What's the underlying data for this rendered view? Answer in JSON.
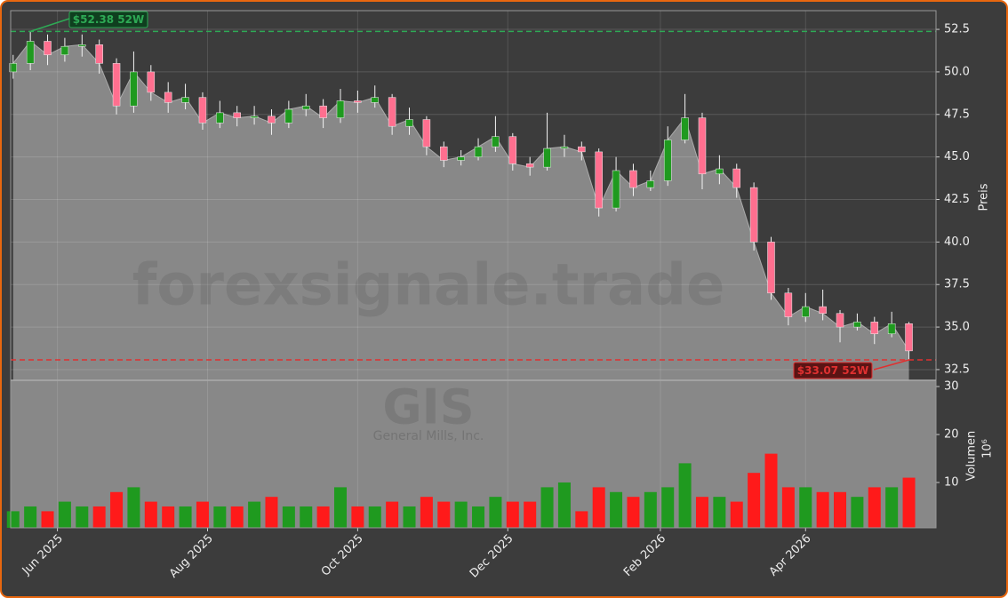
{
  "chart_data": {
    "type": "candlestick",
    "watermark": "forexsignale.trade",
    "ticker": "GIS",
    "company": "General Mills, Inc.",
    "y_label": "Preis",
    "y2_label": "Volumen",
    "y2_unit": "10⁶",
    "up_color": "#1f9a1f",
    "down_color": "#ff1a1a",
    "fill_color": "#888888",
    "x": [
      "2025-05-14",
      "2025-05-21",
      "2025-05-28",
      "2025-06-04",
      "2025-06-11",
      "2025-06-18",
      "2025-06-25",
      "2025-07-02",
      "2025-07-09",
      "2025-07-16",
      "2025-07-23",
      "2025-07-30",
      "2025-08-06",
      "2025-08-13",
      "2025-08-20",
      "2025-08-27",
      "2025-09-03",
      "2025-09-10",
      "2025-09-17",
      "2025-09-24",
      "2025-10-01",
      "2025-10-08",
      "2025-10-15",
      "2025-10-22",
      "2025-10-29",
      "2025-11-05",
      "2025-11-12",
      "2025-11-19",
      "2025-11-26",
      "2025-12-03",
      "2025-12-10",
      "2025-12-17",
      "2025-12-24",
      "2025-12-31",
      "2026-01-07",
      "2026-01-14",
      "2026-01-21",
      "2026-01-28",
      "2026-02-04",
      "2026-02-11",
      "2026-02-18",
      "2026-02-25",
      "2026-03-04",
      "2026-03-11",
      "2026-03-18",
      "2026-03-25",
      "2026-04-01",
      "2026-04-08",
      "2026-04-15",
      "2026-04-22",
      "2026-04-29",
      "2026-05-06",
      "2026-05-13"
    ],
    "open": [
      50.0,
      50.5,
      51.8,
      51.0,
      51.5,
      51.6,
      50.5,
      48.0,
      50.0,
      48.8,
      48.2,
      48.5,
      47.0,
      47.6,
      47.3,
      47.4,
      47.0,
      47.8,
      48.0,
      47.3,
      48.3,
      48.2,
      48.5,
      46.8,
      47.2,
      45.6,
      44.8,
      45.0,
      45.6,
      46.2,
      44.6,
      44.4,
      45.5,
      45.6,
      45.3,
      42.0,
      44.2,
      43.2,
      43.6,
      46.0,
      47.3,
      44.0,
      44.3,
      43.2,
      40.0,
      37.0,
      35.6,
      36.2,
      35.8,
      35.0,
      35.3,
      34.6,
      35.2
    ],
    "high": [
      51.0,
      52.38,
      52.2,
      52.0,
      52.2,
      51.9,
      50.8,
      51.2,
      50.4,
      49.4,
      49.3,
      48.8,
      48.3,
      48.0,
      48.0,
      47.8,
      48.3,
      48.7,
      48.4,
      49.0,
      48.9,
      49.2,
      48.7,
      47.9,
      47.4,
      45.9,
      45.4,
      46.1,
      47.4,
      46.4,
      45.0,
      47.6,
      46.3,
      45.9,
      45.5,
      45.0,
      44.6,
      44.2,
      46.8,
      48.7,
      47.6,
      45.1,
      44.6,
      43.5,
      40.3,
      37.3,
      37.0,
      37.2,
      36.0,
      35.8,
      35.6,
      35.9,
      35.3
    ],
    "low": [
      49.6,
      50.1,
      50.4,
      50.6,
      50.9,
      49.9,
      47.5,
      47.6,
      48.3,
      47.6,
      47.8,
      46.6,
      46.7,
      46.8,
      46.9,
      46.3,
      46.7,
      47.4,
      46.7,
      47.0,
      47.6,
      47.9,
      46.3,
      46.3,
      45.1,
      44.4,
      44.5,
      44.8,
      45.3,
      44.2,
      43.9,
      44.2,
      45.0,
      44.8,
      41.5,
      41.8,
      42.7,
      43.0,
      43.3,
      45.8,
      43.1,
      43.4,
      42.6,
      39.5,
      36.6,
      35.1,
      35.3,
      35.4,
      34.1,
      34.8,
      34.0,
      34.4,
      33.07
    ],
    "close": [
      50.5,
      51.8,
      51.0,
      51.5,
      51.6,
      50.5,
      48.0,
      50.0,
      48.8,
      48.2,
      48.5,
      47.0,
      47.6,
      47.3,
      47.4,
      47.0,
      47.8,
      48.0,
      47.3,
      48.3,
      48.2,
      48.5,
      46.8,
      47.2,
      45.6,
      44.8,
      45.0,
      45.6,
      46.2,
      44.6,
      44.4,
      45.5,
      45.6,
      45.3,
      42.0,
      44.2,
      43.2,
      43.6,
      46.0,
      47.3,
      44.0,
      44.3,
      43.2,
      40.0,
      37.0,
      35.6,
      36.2,
      35.8,
      35.0,
      35.3,
      34.6,
      35.2,
      33.6
    ],
    "volume": [
      4,
      5,
      4,
      6,
      5,
      5,
      8,
      9,
      6,
      5,
      5,
      6,
      5,
      5,
      6,
      7,
      5,
      5,
      5,
      9,
      5,
      5,
      6,
      5,
      7,
      6,
      6,
      5,
      7,
      6,
      6,
      9,
      10,
      4,
      9,
      8,
      7,
      8,
      9,
      14,
      7,
      7,
      6,
      12,
      16,
      9,
      9,
      8,
      8,
      7,
      9,
      9,
      11
    ],
    "xlim": [
      "2025-05-13",
      "2026-05-24"
    ],
    "xticks": [
      {
        "value": "2025-06-01",
        "label": "Jun 2025"
      },
      {
        "value": "2025-08-01",
        "label": "Aug 2025"
      },
      {
        "value": "2025-10-01",
        "label": "Oct 2025"
      },
      {
        "value": "2025-12-01",
        "label": "Dec 2025"
      },
      {
        "value": "2026-02-01",
        "label": "Feb 2026"
      },
      {
        "value": "2026-04-01",
        "label": "Apr 2026"
      }
    ],
    "ylim": [
      31.87,
      53.6
    ],
    "yticks": [
      32.5,
      {
        "value": 35,
        "label": "35.0"
      },
      37.5,
      {
        "value": 40,
        "label": "40.0"
      },
      42.5,
      {
        "value": 45,
        "label": "45.0"
      },
      47.5,
      {
        "value": 50,
        "label": "50.0"
      },
      52.5
    ],
    "y2lim": [
      0.55,
      31.3
    ],
    "y2ticks": [
      10,
      20,
      30
    ],
    "high_52w": {
      "value": 52.38,
      "label": "$52.38 52W",
      "color": "#2eaa55"
    },
    "low_52w": {
      "value": 33.07,
      "label": "$33.07 52W",
      "color": "#e03030"
    },
    "grid": true
  }
}
